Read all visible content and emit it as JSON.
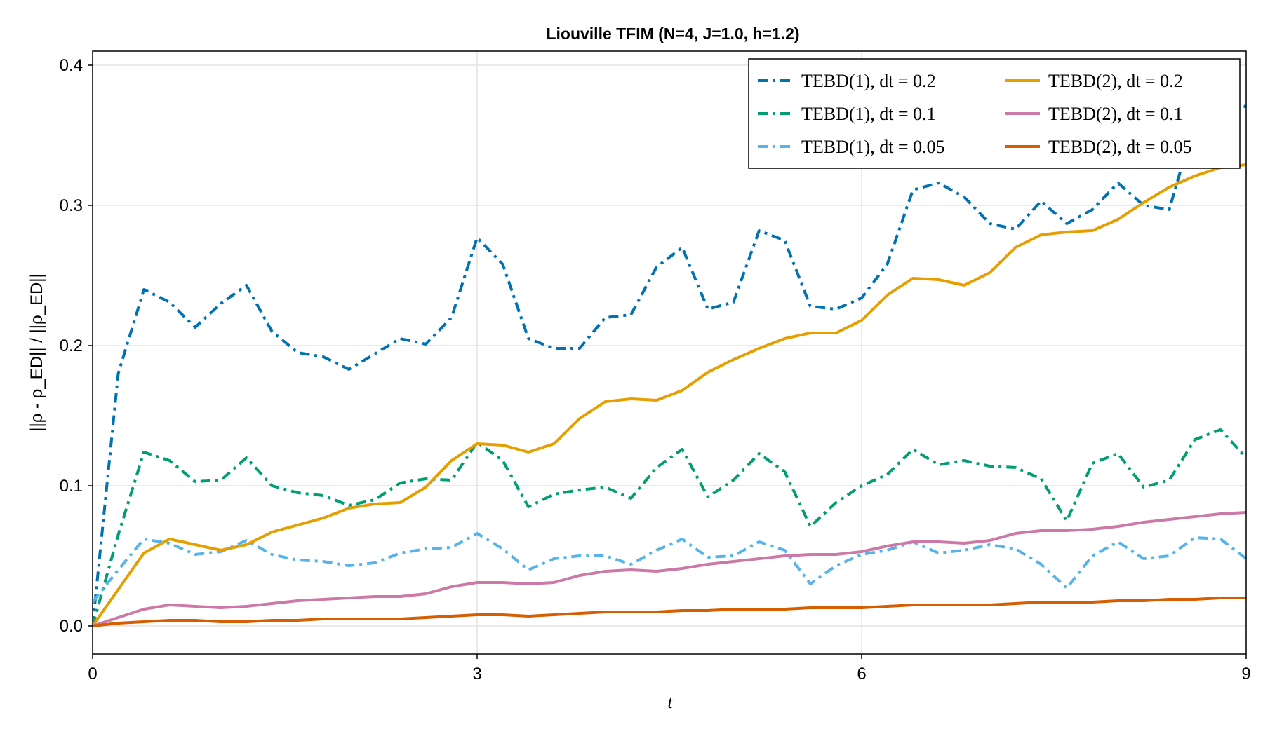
{
  "chart_data": {
    "type": "line",
    "title": "Liouville TFIM (N=4, J=1.0, h=1.2)",
    "xlabel": "t",
    "ylabel": "||ρ - ρ_ED|| / ||ρ_ED||",
    "xlim": [
      0,
      9
    ],
    "ylim": [
      -0.02,
      0.41
    ],
    "xticks": [
      0,
      3,
      6,
      9
    ],
    "xtick_labels": [
      "0",
      "3",
      "6",
      "9"
    ],
    "yticks": [
      0.0,
      0.1,
      0.2,
      0.3,
      0.4
    ],
    "ytick_labels": [
      "0.0",
      "0.1",
      "0.2",
      "0.3",
      "0.4"
    ],
    "grid": true,
    "legend_position": "top-right",
    "x": [
      0,
      0.2,
      0.4,
      0.6,
      0.8,
      1.0,
      1.2,
      1.4,
      1.6,
      1.8,
      2.0,
      2.2,
      2.4,
      2.6,
      2.8,
      3.0,
      3.2,
      3.4,
      3.6,
      3.8,
      4.0,
      4.2,
      4.4,
      4.6,
      4.8,
      5.0,
      5.2,
      5.4,
      5.6,
      5.8,
      6.0,
      6.2,
      6.4,
      6.6,
      6.8,
      7.0,
      7.2,
      7.4,
      7.6,
      7.8,
      8.0,
      8.2,
      8.4,
      8.6,
      8.8,
      9.0
    ],
    "series": [
      {
        "name": "TEBD(1), dt = 0.2",
        "color": "#0072b2",
        "style": "dashdot",
        "values": [
          0.0,
          0.18,
          0.24,
          0.231,
          0.213,
          0.23,
          0.243,
          0.21,
          0.195,
          0.192,
          0.183,
          0.194,
          0.205,
          0.201,
          0.22,
          0.277,
          0.258,
          0.205,
          0.198,
          0.198,
          0.22,
          0.222,
          0.256,
          0.27,
          0.226,
          0.231,
          0.282,
          0.275,
          0.228,
          0.226,
          0.234,
          0.258,
          0.311,
          0.316,
          0.306,
          0.287,
          0.283,
          0.303,
          0.287,
          0.297,
          0.316,
          0.3,
          0.297,
          0.36,
          0.38,
          0.37
        ]
      },
      {
        "name": "TEBD(1), dt = 0.1",
        "color": "#009e73",
        "style": "dashdot",
        "values": [
          0.0,
          0.065,
          0.124,
          0.118,
          0.103,
          0.104,
          0.12,
          0.1,
          0.095,
          0.093,
          0.086,
          0.09,
          0.102,
          0.105,
          0.104,
          0.131,
          0.118,
          0.085,
          0.094,
          0.097,
          0.099,
          0.091,
          0.113,
          0.126,
          0.092,
          0.104,
          0.123,
          0.11,
          0.071,
          0.088,
          0.1,
          0.108,
          0.126,
          0.115,
          0.118,
          0.114,
          0.113,
          0.105,
          0.075,
          0.116,
          0.123,
          0.099,
          0.104,
          0.133,
          0.14,
          0.12
        ]
      },
      {
        "name": "TEBD(1), dt = 0.05",
        "color": "#56b4e9",
        "style": "dashdot",
        "values": [
          0.017,
          0.04,
          0.062,
          0.059,
          0.051,
          0.053,
          0.061,
          0.051,
          0.047,
          0.046,
          0.043,
          0.045,
          0.052,
          0.055,
          0.056,
          0.066,
          0.055,
          0.04,
          0.048,
          0.05,
          0.05,
          0.044,
          0.054,
          0.062,
          0.049,
          0.05,
          0.06,
          0.054,
          0.03,
          0.043,
          0.051,
          0.054,
          0.06,
          0.052,
          0.054,
          0.058,
          0.055,
          0.044,
          0.027,
          0.05,
          0.06,
          0.048,
          0.05,
          0.063,
          0.062,
          0.048
        ]
      },
      {
        "name": "TEBD(2), dt = 0.2",
        "color": "#e69f00",
        "style": "solid",
        "values": [
          0.0,
          0.026,
          0.052,
          0.062,
          0.058,
          0.054,
          0.058,
          0.067,
          0.072,
          0.077,
          0.084,
          0.087,
          0.088,
          0.099,
          0.118,
          0.13,
          0.129,
          0.124,
          0.13,
          0.148,
          0.16,
          0.162,
          0.161,
          0.168,
          0.181,
          0.19,
          0.198,
          0.205,
          0.209,
          0.209,
          0.218,
          0.236,
          0.248,
          0.247,
          0.243,
          0.252,
          0.27,
          0.279,
          0.281,
          0.282,
          0.29,
          0.302,
          0.313,
          0.321,
          0.327,
          0.329
        ]
      },
      {
        "name": "TEBD(2), dt = 0.1",
        "color": "#cc79a7",
        "style": "solid",
        "values": [
          0.0,
          0.006,
          0.012,
          0.015,
          0.014,
          0.013,
          0.014,
          0.016,
          0.018,
          0.019,
          0.02,
          0.021,
          0.021,
          0.023,
          0.028,
          0.031,
          0.031,
          0.03,
          0.031,
          0.036,
          0.039,
          0.04,
          0.039,
          0.041,
          0.044,
          0.046,
          0.048,
          0.05,
          0.051,
          0.051,
          0.053,
          0.057,
          0.06,
          0.06,
          0.059,
          0.061,
          0.066,
          0.068,
          0.068,
          0.069,
          0.071,
          0.074,
          0.076,
          0.078,
          0.08,
          0.081
        ]
      },
      {
        "name": "TEBD(2), dt = 0.05",
        "color": "#d55e00",
        "style": "solid",
        "values": [
          0.0,
          0.002,
          0.003,
          0.004,
          0.004,
          0.003,
          0.003,
          0.004,
          0.004,
          0.005,
          0.005,
          0.005,
          0.005,
          0.006,
          0.007,
          0.008,
          0.008,
          0.007,
          0.008,
          0.009,
          0.01,
          0.01,
          0.01,
          0.011,
          0.011,
          0.012,
          0.012,
          0.012,
          0.013,
          0.013,
          0.013,
          0.014,
          0.015,
          0.015,
          0.015,
          0.015,
          0.016,
          0.017,
          0.017,
          0.017,
          0.018,
          0.018,
          0.019,
          0.019,
          0.02,
          0.02
        ]
      }
    ]
  }
}
